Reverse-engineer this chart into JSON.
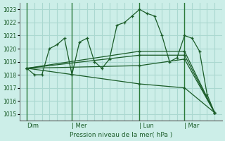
{
  "xlabel": "Pression niveau de la mer( hPa )",
  "bg_color": "#cceee8",
  "grid_color": "#aad8d0",
  "line_color": "#1a5c28",
  "vline_color": "#2a7a3a",
  "ylim": [
    1014.5,
    1023.5
  ],
  "yticks": [
    1015,
    1016,
    1017,
    1018,
    1019,
    1020,
    1021,
    1022,
    1023
  ],
  "xlim": [
    0,
    27
  ],
  "day_labels": [
    "Dim",
    "Mer",
    "Lun",
    "Mar"
  ],
  "day_positions": [
    1,
    7,
    16,
    22
  ],
  "vline_positions": [
    1,
    7,
    16,
    22
  ],
  "lines": [
    {
      "x": [
        1,
        2,
        3,
        4,
        5,
        6,
        7,
        8,
        9,
        10,
        11,
        12,
        13,
        14,
        15,
        16,
        17,
        18,
        19,
        20,
        21,
        22,
        23,
        24,
        25,
        26
      ],
      "y": [
        1018.5,
        1018.0,
        1018.0,
        1020.0,
        1020.3,
        1020.8,
        1018.0,
        1020.5,
        1020.8,
        1019.0,
        1018.5,
        1019.2,
        1021.8,
        1022.0,
        1022.5,
        1023.0,
        1022.7,
        1022.5,
        1021.0,
        1019.0,
        1019.3,
        1021.0,
        1020.8,
        1019.8,
        1016.5,
        1015.1
      ]
    },
    {
      "x": [
        1,
        16,
        22,
        26
      ],
      "y": [
        1018.5,
        1019.5,
        1019.5,
        1015.1
      ]
    },
    {
      "x": [
        1,
        16,
        22,
        26
      ],
      "y": [
        1018.5,
        1019.8,
        1019.8,
        1015.1
      ]
    },
    {
      "x": [
        1,
        16,
        22,
        26
      ],
      "y": [
        1018.5,
        1018.7,
        1019.2,
        1015.1
      ]
    },
    {
      "x": [
        1,
        16,
        22,
        26
      ],
      "y": [
        1018.5,
        1017.3,
        1017.0,
        1015.1
      ]
    }
  ]
}
